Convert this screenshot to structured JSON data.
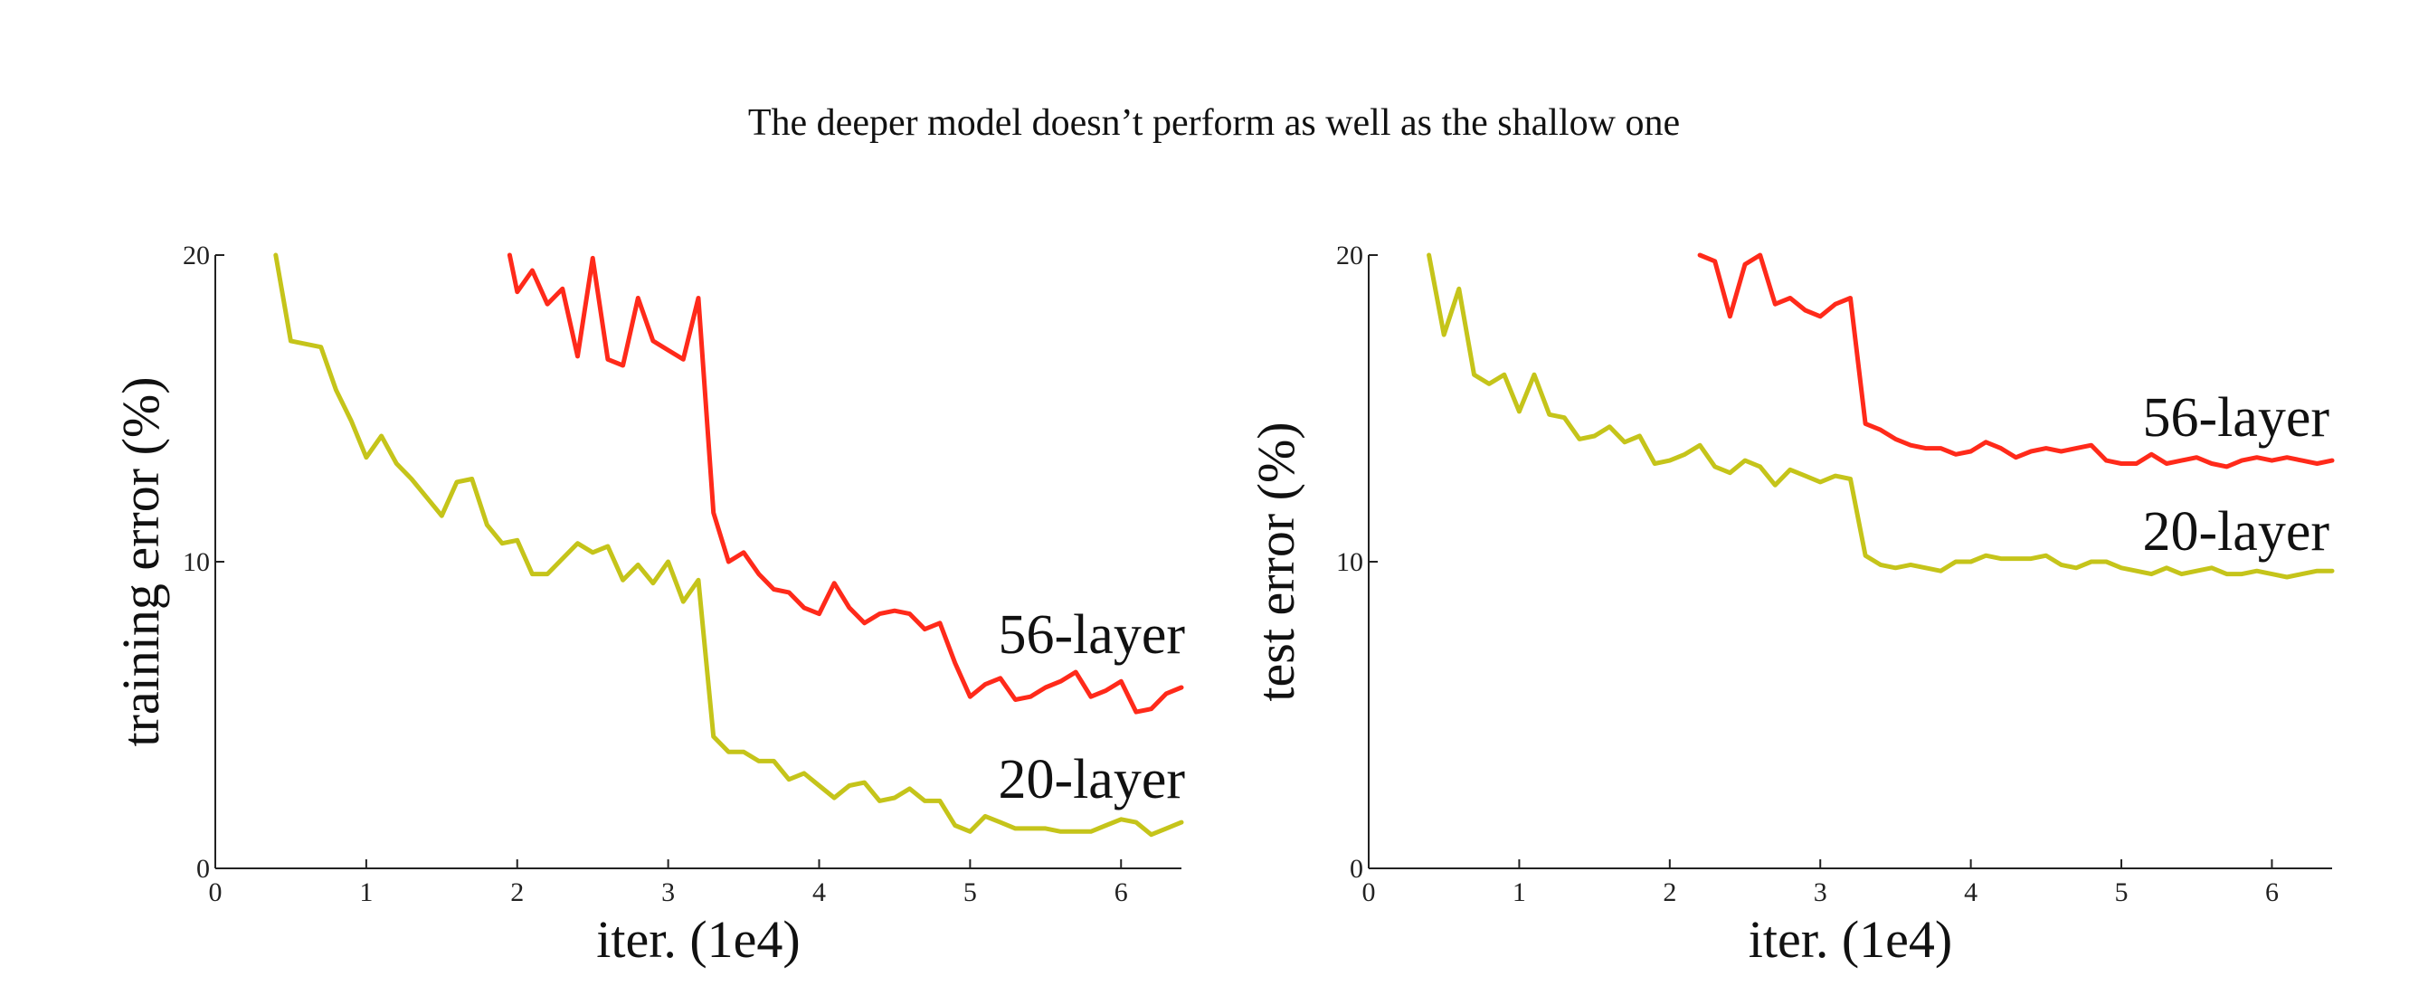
{
  "title": "The deeper model doesn’t perform as well as the shallow one",
  "chart_data": [
    {
      "type": "line",
      "xlabel": "iter. (1e4)",
      "ylabel": "training error (%)",
      "xlim": [
        0,
        6.4
      ],
      "ylim": [
        0,
        20
      ],
      "xticks": [
        "0",
        "1",
        "2",
        "3",
        "4",
        "5",
        "6"
      ],
      "yticks": [
        "0",
        "10",
        "20"
      ],
      "series": [
        {
          "name": "56-layer",
          "color": "#ff2a1a",
          "x": [
            1.95,
            2.0,
            2.1,
            2.2,
            2.3,
            2.4,
            2.5,
            2.6,
            2.7,
            2.8,
            2.9,
            3.0,
            3.1,
            3.2,
            3.3,
            3.4,
            3.5,
            3.6,
            3.7,
            3.8,
            3.9,
            4.0,
            4.1,
            4.2,
            4.3,
            4.4,
            4.5,
            4.6,
            4.7,
            4.8,
            4.9,
            5.0,
            5.1,
            5.2,
            5.3,
            5.4,
            5.5,
            5.6,
            5.7,
            5.8,
            5.9,
            6.0,
            6.1,
            6.2,
            6.3,
            6.4
          ],
          "y": [
            20.0,
            18.8,
            19.5,
            18.4,
            18.9,
            16.7,
            19.9,
            16.6,
            16.4,
            18.6,
            17.2,
            16.9,
            16.6,
            18.6,
            11.6,
            10.0,
            10.3,
            9.6,
            9.1,
            9.0,
            8.5,
            8.3,
            9.3,
            8.5,
            8.0,
            8.3,
            8.4,
            8.3,
            7.8,
            8.0,
            6.7,
            5.6,
            6.0,
            6.2,
            5.5,
            5.6,
            5.9,
            6.1,
            6.4,
            5.6,
            5.8,
            6.1,
            5.1,
            5.2,
            5.7,
            5.9
          ]
        },
        {
          "name": "20-layer",
          "color": "#c5c41a",
          "x": [
            0.4,
            0.5,
            0.6,
            0.7,
            0.8,
            0.9,
            1.0,
            1.1,
            1.2,
            1.3,
            1.4,
            1.5,
            1.6,
            1.7,
            1.8,
            1.9,
            2.0,
            2.1,
            2.2,
            2.3,
            2.4,
            2.5,
            2.6,
            2.7,
            2.8,
            2.9,
            3.0,
            3.1,
            3.2,
            3.3,
            3.4,
            3.5,
            3.6,
            3.7,
            3.8,
            3.9,
            4.0,
            4.1,
            4.2,
            4.3,
            4.4,
            4.5,
            4.6,
            4.7,
            4.8,
            4.9,
            5.0,
            5.1,
            5.2,
            5.3,
            5.4,
            5.5,
            5.6,
            5.7,
            5.8,
            5.9,
            6.0,
            6.1,
            6.2,
            6.3,
            6.4
          ],
          "y": [
            20.0,
            17.2,
            17.1,
            17.0,
            15.6,
            14.6,
            13.4,
            14.1,
            13.2,
            12.7,
            12.1,
            11.5,
            12.6,
            12.7,
            11.2,
            10.6,
            10.7,
            9.6,
            9.6,
            10.1,
            10.6,
            10.3,
            10.5,
            9.4,
            9.9,
            9.3,
            10.0,
            8.7,
            9.4,
            4.3,
            3.8,
            3.8,
            3.5,
            3.5,
            2.9,
            3.1,
            2.7,
            2.3,
            2.7,
            2.8,
            2.2,
            2.3,
            2.6,
            2.2,
            2.2,
            1.4,
            1.2,
            1.7,
            1.5,
            1.3,
            1.3,
            1.3,
            1.2,
            1.2,
            1.2,
            1.4,
            1.6,
            1.5,
            1.1,
            1.3,
            1.5
          ]
        }
      ]
    },
    {
      "type": "line",
      "xlabel": "iter. (1e4)",
      "ylabel": "test error (%)",
      "xlim": [
        0,
        6.4
      ],
      "ylim": [
        0,
        20
      ],
      "xticks": [
        "0",
        "1",
        "2",
        "3",
        "4",
        "5",
        "6"
      ],
      "yticks": [
        "0",
        "10",
        "20"
      ],
      "series": [
        {
          "name": "56-layer",
          "color": "#ff2a1a",
          "x": [
            2.2,
            2.3,
            2.4,
            2.5,
            2.6,
            2.7,
            2.8,
            2.9,
            3.0,
            3.1,
            3.2,
            3.3,
            3.4,
            3.5,
            3.6,
            3.7,
            3.8,
            3.9,
            4.0,
            4.1,
            4.2,
            4.3,
            4.4,
            4.5,
            4.6,
            4.7,
            4.8,
            4.9,
            5.0,
            5.1,
            5.2,
            5.3,
            5.4,
            5.5,
            5.6,
            5.7,
            5.8,
            5.9,
            6.0,
            6.1,
            6.2,
            6.3,
            6.4
          ],
          "y": [
            20.0,
            19.8,
            18.0,
            19.7,
            20.0,
            18.4,
            18.6,
            18.2,
            18.0,
            18.4,
            18.6,
            14.5,
            14.3,
            14.0,
            13.8,
            13.7,
            13.7,
            13.5,
            13.6,
            13.9,
            13.7,
            13.4,
            13.6,
            13.7,
            13.6,
            13.7,
            13.8,
            13.3,
            13.2,
            13.2,
            13.5,
            13.2,
            13.3,
            13.4,
            13.2,
            13.1,
            13.3,
            13.4,
            13.3,
            13.4,
            13.3,
            13.2,
            13.3
          ]
        },
        {
          "name": "20-layer",
          "color": "#c5c41a",
          "x": [
            0.4,
            0.5,
            0.6,
            0.7,
            0.8,
            0.9,
            1.0,
            1.1,
            1.2,
            1.3,
            1.4,
            1.5,
            1.6,
            1.7,
            1.8,
            1.9,
            2.0,
            2.1,
            2.2,
            2.3,
            2.4,
            2.5,
            2.6,
            2.7,
            2.8,
            2.9,
            3.0,
            3.1,
            3.2,
            3.3,
            3.4,
            3.5,
            3.6,
            3.7,
            3.8,
            3.9,
            4.0,
            4.1,
            4.2,
            4.3,
            4.4,
            4.5,
            4.6,
            4.7,
            4.8,
            4.9,
            5.0,
            5.1,
            5.2,
            5.3,
            5.4,
            5.5,
            5.6,
            5.7,
            5.8,
            5.9,
            6.0,
            6.1,
            6.2,
            6.3,
            6.4
          ],
          "y": [
            20.0,
            17.4,
            18.9,
            16.1,
            15.8,
            16.1,
            14.9,
            16.1,
            14.8,
            14.7,
            14.0,
            14.1,
            14.4,
            13.9,
            14.1,
            13.2,
            13.3,
            13.5,
            13.8,
            13.1,
            12.9,
            13.3,
            13.1,
            12.5,
            13.0,
            12.8,
            12.6,
            12.8,
            12.7,
            10.2,
            9.9,
            9.8,
            9.9,
            9.8,
            9.7,
            10.0,
            10.0,
            10.2,
            10.1,
            10.1,
            10.1,
            10.2,
            9.9,
            9.8,
            10.0,
            10.0,
            9.8,
            9.7,
            9.6,
            9.8,
            9.6,
            9.7,
            9.8,
            9.6,
            9.6,
            9.7,
            9.6,
            9.5,
            9.6,
            9.7,
            9.7
          ]
        }
      ]
    }
  ]
}
